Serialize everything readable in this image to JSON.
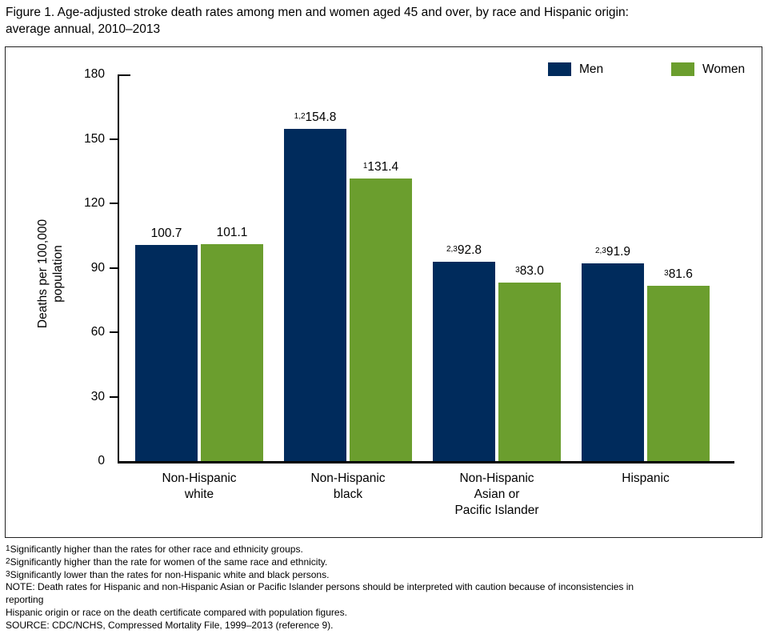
{
  "title_lines": [
    "Figure 1. Age-adjusted stroke death rates among men and women aged 45 and over, by race and Hispanic origin:",
    "average annual, 2010–2013"
  ],
  "colors": {
    "men": "#002b5c",
    "women": "#6b9e2e",
    "axis": "#000000"
  },
  "legend": [
    {
      "label": "Men"
    },
    {
      "label": "Women"
    }
  ],
  "chart_data": {
    "type": "bar",
    "title": "Figure 1. Age-adjusted stroke death rates among men and women aged 45 and over, by race and Hispanic origin: average annual, 2010–2013",
    "xlabel": "",
    "ylabel": "Deaths per 100,000 population",
    "ylabel_lines": [
      "Deaths per 100,000",
      "population"
    ],
    "ylim": [
      0,
      180
    ],
    "yticks": [
      0,
      30,
      60,
      90,
      120,
      150,
      180
    ],
    "grid": false,
    "legend_position": "top-right",
    "categories": [
      [
        "Non-Hispanic",
        "white"
      ],
      [
        "Non-Hispanic",
        "black"
      ],
      [
        "Non-Hispanic",
        "Asian or",
        "Pacific Islander"
      ],
      [
        "Hispanic"
      ]
    ],
    "series": [
      {
        "name": "Men",
        "color": "#002b5c",
        "values": [
          100.7,
          154.8,
          92.8,
          91.9
        ],
        "labels": [
          {
            "sup": "",
            "text": "100.7"
          },
          {
            "sup": "1,2",
            "text": "154.8"
          },
          {
            "sup": "2,3",
            "text": "92.8"
          },
          {
            "sup": "2,3",
            "text": "91.9"
          }
        ]
      },
      {
        "name": "Women",
        "color": "#6b9e2e",
        "values": [
          101.1,
          131.4,
          83.0,
          81.6
        ],
        "labels": [
          {
            "sup": "",
            "text": "101.1"
          },
          {
            "sup": "1",
            "text": "131.4"
          },
          {
            "sup": "3",
            "text": "83.0"
          },
          {
            "sup": "3",
            "text": "81.6"
          }
        ]
      }
    ]
  },
  "footnotes": [
    {
      "sup": "1",
      "text": "Significantly higher than the rates for other race and ethnicity groups."
    },
    {
      "sup": "2",
      "text": "Significantly higher than the rate for women of the same race and ethnicity."
    },
    {
      "sup": "3",
      "text": "Significantly lower than the rates for non-Hispanic white and black persons."
    },
    {
      "sup": "",
      "text": "NOTE: Death rates for Hispanic and non-Hispanic Asian or Pacific Islander persons should be interpreted with caution because of inconsistencies in"
    },
    {
      "sup": "",
      "text": "reporting"
    },
    {
      "sup": "",
      "text": "Hispanic origin or race on the death certificate compared with population figures."
    },
    {
      "sup": "",
      "text": "SOURCE: CDC/NCHS, Compressed Mortality File, 1999–2013 (reference 9)."
    }
  ]
}
